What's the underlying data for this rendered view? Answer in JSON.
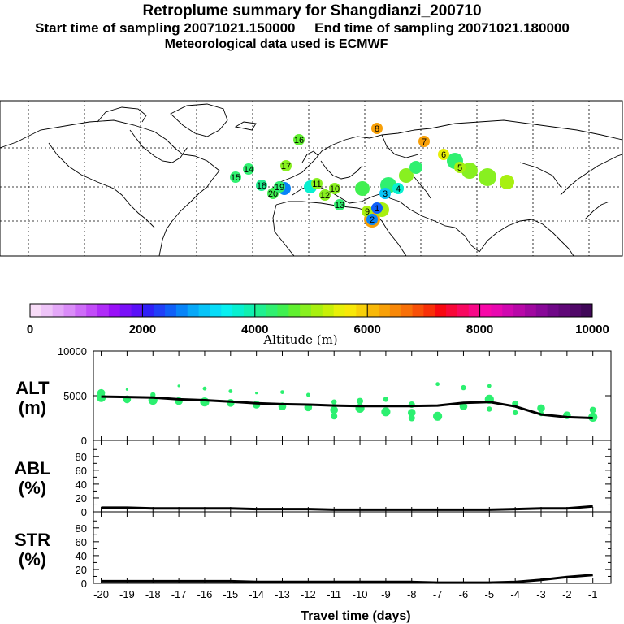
{
  "header": {
    "title": "Retroplume summary for Shangdianzi_200710",
    "sampling_line": "Start time of sampling 20071021.150000     End time of sampling 20071021.180000",
    "met_line": "Meteorological data used is ECMWF"
  },
  "colorbar": {
    "title": "Altitude (m)",
    "tick_labels": [
      "0",
      "2000",
      "4000",
      "6000",
      "8000",
      "10000"
    ],
    "colors": [
      "#f8dcf8",
      "#eec4f8",
      "#e4a8f8",
      "#da8cf8",
      "#ce6cf8",
      "#c24cf8",
      "#b02cf8",
      "#9a10f8",
      "#7a10f8",
      "#5a10f8",
      "#3020f8",
      "#2040f8",
      "#1060f8",
      "#0884f8",
      "#08a8f8",
      "#08c4f8",
      "#08dcf8",
      "#08f0f0",
      "#08f0d0",
      "#10f0b0",
      "#20f090",
      "#30f070",
      "#40f050",
      "#60f030",
      "#88f020",
      "#a8f010",
      "#c8f008",
      "#e8f008",
      "#f8e808",
      "#f8d008",
      "#f8b808",
      "#f8a008",
      "#f88808",
      "#f87008",
      "#f85008",
      "#f83008",
      "#f80810",
      "#f80838",
      "#f80860",
      "#f80888",
      "#f808a8",
      "#e808b0",
      "#d008b0",
      "#b808a8",
      "#a008a0",
      "#880898",
      "#700888",
      "#600878",
      "#500868",
      "#400858"
    ]
  },
  "map": {
    "plume_points": [
      {
        "label": "20",
        "alt": 4400
      },
      {
        "label": "19",
        "alt": 4300
      },
      {
        "label": "18",
        "alt": 4100
      },
      {
        "label": "17",
        "alt": 4800
      },
      {
        "label": "16",
        "alt": 4600
      },
      {
        "label": "15",
        "alt": 4200
      },
      {
        "label": "14",
        "alt": 4300
      },
      {
        "label": "13",
        "alt": 4300
      },
      {
        "label": "12",
        "alt": 4800
      },
      {
        "label": "11",
        "alt": 4900
      },
      {
        "label": "10",
        "alt": 4900
      },
      {
        "label": "9",
        "alt": 5000
      },
      {
        "label": "8",
        "alt": 6300
      },
      {
        "label": "7",
        "alt": 6200
      },
      {
        "label": "6",
        "alt": 5400
      },
      {
        "label": "5",
        "alt": 5100
      },
      {
        "label": "4",
        "alt": 3700
      },
      {
        "label": "3",
        "alt": 3100
      },
      {
        "label": "2",
        "alt": 2700
      },
      {
        "label": "1",
        "alt": 2500
      }
    ]
  },
  "chart_data": [
    {
      "type": "line",
      "name": "ALT",
      "ylabel_line1": "ALT",
      "ylabel_line2": "(m)",
      "ylim": [
        0,
        10000
      ],
      "yticks": [
        "10000",
        "5000",
        "0"
      ],
      "x": [
        -20,
        -19,
        -18,
        -17,
        -16,
        -15,
        -14,
        -13,
        -12,
        -11,
        -10,
        -9,
        -8,
        -7,
        -6,
        -5,
        -4,
        -3,
        -2,
        -1
      ],
      "values": [
        4900,
        4850,
        4800,
        4600,
        4500,
        4350,
        4150,
        4050,
        4000,
        3900,
        3850,
        3850,
        3850,
        3900,
        4200,
        4300,
        3800,
        2900,
        2600,
        2500
      ],
      "scatter_x": [
        -20,
        -20,
        -19,
        -19,
        -18,
        -18,
        -17,
        -17,
        -16,
        -16,
        -15,
        -15,
        -14,
        -14,
        -13,
        -13,
        -12,
        -12,
        -11,
        -11,
        -11,
        -10,
        -10,
        -9,
        -9,
        -8,
        -8,
        -8,
        -7,
        -7,
        -6,
        -6,
        -5,
        -5,
        -5,
        -4,
        -4,
        -3,
        -3,
        -2,
        -1,
        -1
      ],
      "scatter_y": [
        4800,
        5300,
        4600,
        5700,
        4500,
        5100,
        4400,
        6100,
        4300,
        5800,
        4200,
        5500,
        4000,
        5300,
        3800,
        5400,
        3700,
        5100,
        3400,
        4300,
        2700,
        3600,
        4400,
        3200,
        4600,
        3100,
        4000,
        2500,
        2700,
        6300,
        3800,
        5900,
        4600,
        3500,
        6100,
        4100,
        3100,
        3600,
        3000,
        2800,
        2600,
        3400
      ],
      "scatter_size": [
        7,
        6,
        6,
        2,
        7,
        4,
        6,
        2,
        7,
        3,
        6,
        3,
        6,
        2,
        6,
        3,
        6,
        3,
        6,
        4,
        5,
        7,
        5,
        7,
        4,
        6,
        5,
        5,
        7,
        3,
        6,
        4,
        7,
        4,
        3,
        5,
        4,
        6,
        4,
        6,
        7,
        5
      ],
      "scatter_color": "#2cf070"
    },
    {
      "type": "line",
      "name": "ABL",
      "ylabel_line1": "ABL",
      "ylabel_line2": "(%)",
      "ylim": [
        0,
        95
      ],
      "yticks": [
        "80",
        "60",
        "40",
        "20",
        "0"
      ],
      "x": [
        -20,
        -19,
        -18,
        -17,
        -16,
        -15,
        -14,
        -13,
        -12,
        -11,
        -10,
        -9,
        -8,
        -7,
        -6,
        -5,
        -4,
        -3,
        -2,
        -1
      ],
      "values": [
        6,
        6,
        5,
        5,
        5,
        5,
        4,
        4,
        4,
        3,
        3,
        3,
        3,
        3,
        3,
        3,
        4,
        5,
        5,
        8
      ]
    },
    {
      "type": "line",
      "name": "STR",
      "ylabel_line1": "STR",
      "ylabel_line2": "(%)",
      "xlabel": "Travel time (days)",
      "ylim": [
        0,
        95
      ],
      "yticks": [
        "80",
        "60",
        "40",
        "20",
        "0"
      ],
      "x": [
        -20,
        -19,
        -18,
        -17,
        -16,
        -15,
        -14,
        -13,
        -12,
        -11,
        -10,
        -9,
        -8,
        -7,
        -6,
        -5,
        -4,
        -3,
        -2,
        -1
      ],
      "values": [
        3,
        3,
        3,
        3,
        3,
        3,
        2,
        2,
        2,
        2,
        2,
        2,
        2,
        1,
        1,
        1,
        2,
        5,
        9,
        12
      ],
      "xtick_labels": [
        "-20",
        "-19",
        "-18",
        "-17",
        "-16",
        "-15",
        "-14",
        "-13",
        "-12",
        "-11",
        "-10",
        "-9",
        "-8",
        "-7",
        "-6",
        "-5",
        "-4",
        "-3",
        "-2",
        "-1"
      ]
    }
  ]
}
